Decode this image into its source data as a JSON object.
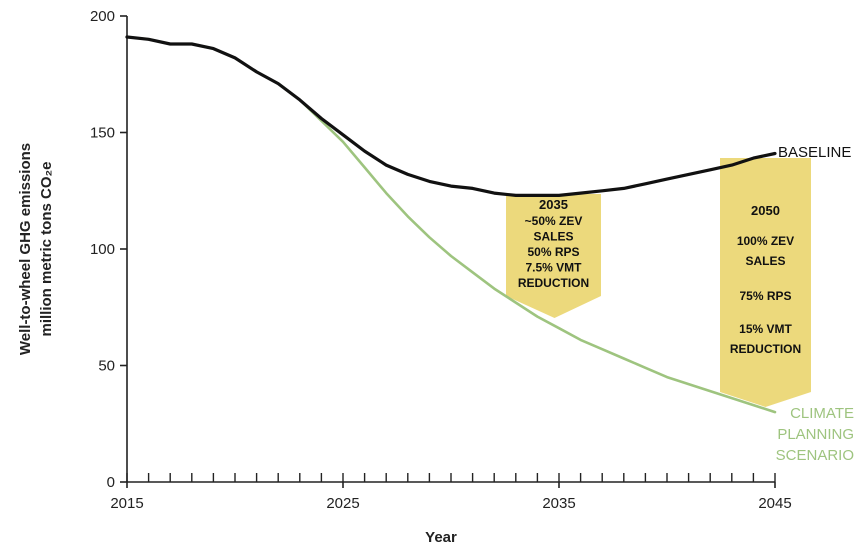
{
  "chart_data": {
    "type": "line",
    "xlabel": "Year",
    "ylabel": "Well-to-wheel GHG emissions million metric tons CO₂e",
    "ylabel_lines": [
      "Well-to-wheel GHG emissions",
      "million metric tons CO₂e"
    ],
    "xlim": [
      2015,
      2045
    ],
    "ylim": [
      0,
      200
    ],
    "x_ticks": [
      2015,
      2025,
      2035,
      2045
    ],
    "x_tick_labels": [
      "2015",
      "2025",
      "2035",
      "2045"
    ],
    "y_ticks": [
      0,
      50,
      100,
      150,
      200
    ],
    "y_tick_labels": [
      "0",
      "50",
      "100",
      "150",
      "200"
    ],
    "grid": false,
    "series": [
      {
        "name": "BASELINE",
        "color": "#111111",
        "x": [
          2015,
          2016,
          2017,
          2018,
          2019,
          2020,
          2021,
          2022,
          2023,
          2024,
          2025,
          2026,
          2027,
          2028,
          2029,
          2030,
          2031,
          2032,
          2033,
          2034,
          2035,
          2036,
          2037,
          2038,
          2039,
          2040,
          2041,
          2042,
          2043,
          2044,
          2045
        ],
        "values": [
          191,
          190,
          188,
          188,
          186,
          182,
          176,
          171,
          164,
          156,
          149,
          142,
          136,
          132,
          129,
          127,
          126,
          124,
          123,
          123,
          123,
          124,
          125,
          126,
          128,
          130,
          132,
          134,
          136,
          139,
          141
        ]
      },
      {
        "name": "CLIMATE PLANNING SCENARIO",
        "color": "#9ec47f",
        "x": [
          2015,
          2016,
          2017,
          2018,
          2019,
          2020,
          2021,
          2022,
          2023,
          2024,
          2025,
          2026,
          2027,
          2028,
          2029,
          2030,
          2031,
          2032,
          2033,
          2034,
          2035,
          2036,
          2037,
          2038,
          2039,
          2040,
          2041,
          2042,
          2043,
          2044,
          2045
        ],
        "values": [
          191,
          190,
          188,
          188,
          186,
          182,
          176,
          171,
          164,
          155,
          146,
          135,
          124,
          114,
          105,
          97,
          90,
          83,
          77,
          71,
          66,
          61,
          57,
          53,
          49,
          45,
          42,
          39,
          36,
          33,
          30
        ]
      }
    ],
    "series_labels": [
      {
        "lines": [
          "BASELINE"
        ]
      },
      {
        "lines": [
          "CLIMATE",
          "PLANNING",
          "SCENARIO"
        ]
      }
    ],
    "annotations": [
      {
        "year": 2035,
        "title": "2035",
        "lines": [
          "~50% ZEV",
          "SALES",
          "50% RPS",
          "7.5% VMT",
          "REDUCTION"
        ]
      },
      {
        "year": 2050,
        "title": "2050",
        "lines": [
          "100% ZEV",
          "SALES",
          "",
          "75% RPS",
          "",
          "15% VMT",
          "REDUCTION"
        ]
      }
    ],
    "colors": {
      "baseline": "#111111",
      "climate": "#9ec47f",
      "annotation_fill": "#ecd97c",
      "axis": "#222222"
    }
  }
}
